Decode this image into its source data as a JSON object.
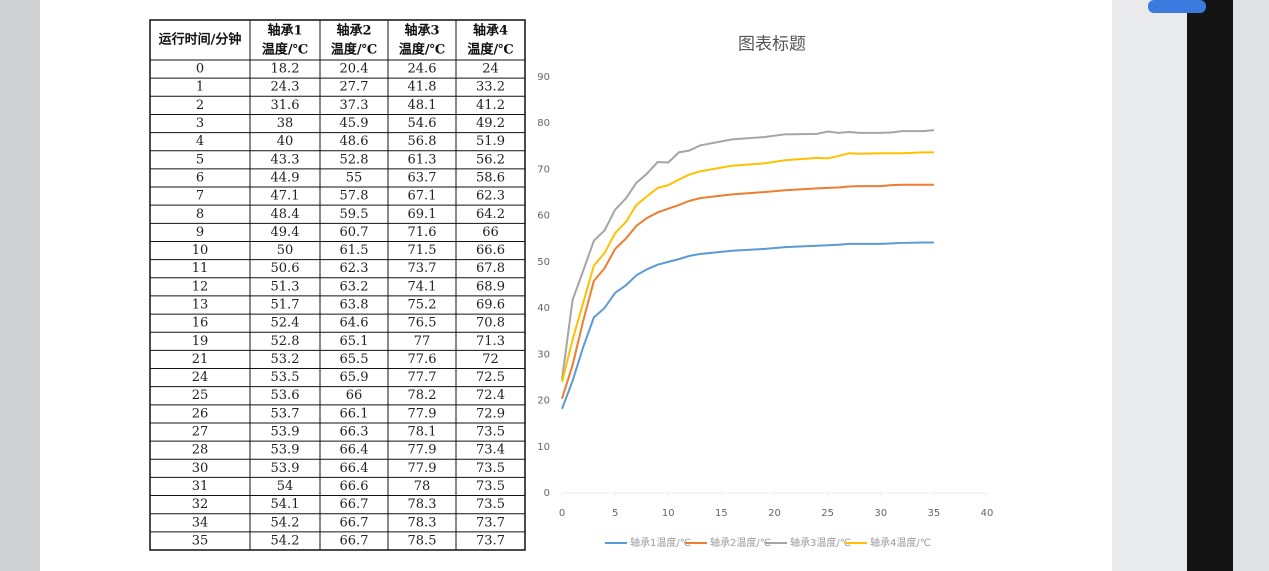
{
  "table_header": [
    [
      "运行时间/分钟"
    ],
    [
      "轴承1",
      "温度/℃"
    ],
    [
      "轴承2",
      "温度/℃"
    ],
    [
      "轴承3",
      "温度/℃"
    ],
    [
      "轴承4",
      "温度/℃"
    ]
  ],
  "chart_data": {
    "type": "line",
    "title": "图表标题",
    "x": [
      0,
      1,
      2,
      3,
      4,
      5,
      6,
      7,
      8,
      9,
      10,
      11,
      12,
      13,
      16,
      19,
      21,
      24,
      25,
      26,
      27,
      28,
      30,
      31,
      32,
      34,
      35
    ],
    "series": [
      {
        "name": "轴承1温度/℃",
        "color": "#5b9bd5",
        "values": [
          18.2,
          24.3,
          31.6,
          38,
          40,
          43.3,
          44.9,
          47.1,
          48.4,
          49.4,
          50,
          50.6,
          51.3,
          51.7,
          52.4,
          52.8,
          53.2,
          53.5,
          53.6,
          53.7,
          53.9,
          53.9,
          53.9,
          54,
          54.1,
          54.2,
          54.2
        ]
      },
      {
        "name": "轴承2温度/℃",
        "color": "#ed7d31",
        "values": [
          20.4,
          27.7,
          37.3,
          45.9,
          48.6,
          52.8,
          55,
          57.8,
          59.5,
          60.7,
          61.5,
          62.3,
          63.2,
          63.8,
          64.6,
          65.1,
          65.5,
          65.9,
          66,
          66.1,
          66.3,
          66.4,
          66.4,
          66.6,
          66.7,
          66.7,
          66.7
        ]
      },
      {
        "name": "轴承3温度/℃",
        "color": "#a5a5a5",
        "values": [
          24.6,
          41.8,
          48.1,
          54.6,
          56.8,
          61.3,
          63.7,
          67.1,
          69.1,
          71.6,
          71.5,
          73.7,
          74.1,
          75.2,
          76.5,
          77,
          77.6,
          77.7,
          78.2,
          77.9,
          78.1,
          77.9,
          77.9,
          78,
          78.3,
          78.3,
          78.5
        ]
      },
      {
        "name": "轴承4温度/℃",
        "color": "#ffc000",
        "values": [
          24,
          33.2,
          41.2,
          49.2,
          51.9,
          56.2,
          58.6,
          62.3,
          64.2,
          66,
          66.6,
          67.8,
          68.9,
          69.6,
          70.8,
          71.3,
          72,
          72.5,
          72.4,
          72.9,
          73.5,
          73.4,
          73.5,
          73.5,
          73.5,
          73.7,
          73.7
        ]
      }
    ],
    "xlim": [
      0,
      40
    ],
    "xticks": [
      0,
      5,
      10,
      15,
      20,
      25,
      30,
      35,
      40
    ],
    "ylim": [
      0,
      90
    ],
    "yticks": [
      0,
      10,
      20,
      30,
      40,
      50,
      60,
      70,
      80,
      90
    ],
    "grid": false,
    "legend": "bottom"
  }
}
